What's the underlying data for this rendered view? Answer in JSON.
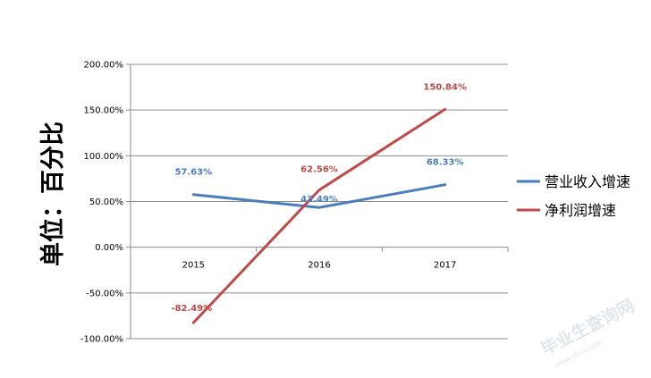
{
  "chart_data": {
    "type": "line",
    "title": "",
    "xlabel": "",
    "ylabel": "单位：百分比",
    "categories": [
      "2015",
      "2016",
      "2017"
    ],
    "ylim": [
      -100,
      200
    ],
    "yticks": [
      -100,
      -50,
      0,
      50,
      100,
      150,
      200
    ],
    "ytick_labels": [
      "-100.00%",
      "-50.00%",
      "0.00%",
      "50.00%",
      "100.00%",
      "150.00%",
      "200.00%"
    ],
    "grid": true,
    "legend_position": "right",
    "series": [
      {
        "name": "营业收入增速",
        "values": [
          57.63,
          43.49,
          68.33
        ],
        "labels": [
          "57.63%",
          "43.49%",
          "68.33%"
        ],
        "color": "#4A7EBB"
      },
      {
        "name": "净利润增速",
        "values": [
          -82.49,
          62.56,
          150.84
        ],
        "labels": [
          "-82.49%",
          "62.56%",
          "150.84%"
        ],
        "color": "#BE4B48"
      }
    ]
  },
  "watermark": {
    "text": "毕业生查询网",
    "subtext": "www.sbvv.com",
    "color": "#c8d2dc"
  }
}
